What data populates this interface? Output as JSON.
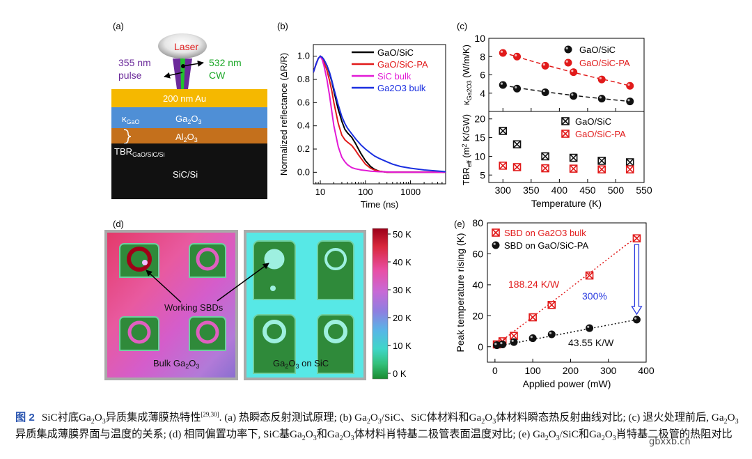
{
  "panel_labels": {
    "a": "(a)",
    "b": "(b)",
    "c": "(c)",
    "d": "(d)",
    "e": "(e)"
  },
  "panel_a": {
    "laser": "Laser",
    "pulse_line1": "355 nm",
    "pulse_line2": "pulse",
    "cw_line1": "532 nm",
    "cw_line2": "CW",
    "layer_au": "200 nm Au",
    "kappa_label": "κGaO",
    "layer_ga2o3": "Ga2O3",
    "layer_al2o3": "Al2O3",
    "tbr_label": "TBRGaO/SiC/Si",
    "layer_sic": "SiC/Si",
    "colors": {
      "au": "#f5b800",
      "ga2o3": "#4f8fd6",
      "al2o3": "#c4701c",
      "sic": "#111111",
      "beam_purple": "#6b2a9a",
      "beam_green": "#22c12e",
      "laser_text": "#e02020"
    }
  },
  "panel_d": {
    "working_label": "Working SBDs",
    "bulk_label": "Bulk Ga2O3",
    "sic_label": "Ga2O3 on SiC",
    "colorbar_ticks": [
      "50 K",
      "40 K",
      "30 K",
      "20 K",
      "10 K",
      "0 K"
    ]
  },
  "caption": {
    "figure_label": "图 2",
    "text_lead": "SiC衬底Ga2O3异质集成薄膜热特性",
    "refs": "[29,30]",
    "text_body": ". (a) 热瞬态反射测试原理; (b) Ga2O3/SiC、SiC体材料和Ga2O3体材料瞬态热反射曲线对比; (c) 退火处理前后, Ga2O3异质集成薄膜界面与温度的关系; (d) 相同偏置功率下, SiC基Ga2O3和Ga2O3体材料肖特基二极管表面温度对比; (e) Ga2O3/SiC和Ga2O3肖特基二极管的热阻对比"
  },
  "watermark": "gbxxb.cn",
  "chart_data": [
    {
      "id": "b",
      "type": "line",
      "xscale": "log",
      "xlabel": "Time (ns)",
      "ylabel": "Normalized reflectance (ΔR/R)",
      "xlim": [
        7,
        6000
      ],
      "ylim": [
        -0.1,
        1.1
      ],
      "xticks": [
        10,
        100,
        1000
      ],
      "yticks": [
        0.0,
        0.2,
        0.4,
        0.6,
        0.8,
        1.0
      ],
      "series": [
        {
          "name": "GaO/SiC",
          "color": "#000000",
          "x": [
            7,
            8,
            9,
            10,
            11,
            12,
            14,
            16,
            18,
            20,
            25,
            30,
            35,
            40,
            50,
            60,
            70,
            80,
            100,
            130,
            160,
            200,
            300,
            500,
            1000,
            6000
          ],
          "y": [
            0.86,
            0.93,
            0.98,
            1.0,
            0.99,
            0.97,
            0.92,
            0.85,
            0.78,
            0.7,
            0.54,
            0.44,
            0.37,
            0.34,
            0.3,
            0.25,
            0.2,
            0.16,
            0.1,
            0.05,
            0.025,
            0.01,
            0.0,
            0.0,
            0.0,
            0.0
          ]
        },
        {
          "name": "GaO/SiC-PA",
          "color": "#e11a1a",
          "x": [
            7,
            8,
            9,
            10,
            11,
            12,
            14,
            16,
            18,
            20,
            25,
            30,
            35,
            40,
            50,
            60,
            70,
            80,
            100,
            130,
            160,
            200,
            300,
            500,
            1000,
            6000
          ],
          "y": [
            0.86,
            0.93,
            0.98,
            1.0,
            0.98,
            0.95,
            0.88,
            0.79,
            0.7,
            0.6,
            0.42,
            0.32,
            0.28,
            0.26,
            0.23,
            0.19,
            0.15,
            0.12,
            0.07,
            0.035,
            0.02,
            0.01,
            0.0,
            0.0,
            0.0,
            0.0
          ]
        },
        {
          "name": "SiC bulk",
          "color": "#e21ad6",
          "x": [
            7,
            8,
            9,
            10,
            11,
            12,
            14,
            16,
            18,
            20,
            25,
            30,
            35,
            40,
            50,
            60,
            70,
            80,
            100,
            130,
            200,
            500,
            1000,
            6000
          ],
          "y": [
            0.86,
            0.93,
            0.98,
            1.0,
            0.97,
            0.92,
            0.8,
            0.66,
            0.52,
            0.4,
            0.22,
            0.13,
            0.09,
            0.065,
            0.04,
            0.03,
            0.025,
            0.02,
            0.015,
            0.01,
            0.005,
            0.0,
            0.0,
            0.0
          ]
        },
        {
          "name": "Ga2O3 bulk",
          "color": "#1a2fe0",
          "x": [
            7,
            8,
            9,
            10,
            11,
            12,
            14,
            16,
            18,
            20,
            25,
            30,
            35,
            40,
            50,
            60,
            70,
            80,
            100,
            130,
            160,
            200,
            300,
            400,
            600,
            1000,
            2000,
            6000
          ],
          "y": [
            0.86,
            0.93,
            0.98,
            1.0,
            0.99,
            0.97,
            0.92,
            0.86,
            0.79,
            0.72,
            0.58,
            0.48,
            0.42,
            0.38,
            0.33,
            0.29,
            0.26,
            0.235,
            0.2,
            0.165,
            0.14,
            0.12,
            0.09,
            0.07,
            0.05,
            0.035,
            0.02,
            0.005
          ]
        }
      ]
    },
    {
      "id": "c-top",
      "type": "scatter",
      "xlabel": "",
      "ylabel": "κGa2O3 (W/m/K)",
      "xlim": [
        275,
        550
      ],
      "ylim": [
        2,
        10
      ],
      "xticks": [
        300,
        350,
        400,
        450,
        500,
        550
      ],
      "yticks": [
        4,
        6,
        8,
        10
      ],
      "series": [
        {
          "name": "GaO/SiC",
          "color": "#111111",
          "x": [
            300,
            325,
            375,
            425,
            475,
            525
          ],
          "y": [
            4.9,
            4.5,
            4.1,
            3.7,
            3.4,
            3.1
          ],
          "fit": {
            "x": [
              300,
              340,
              380,
              420,
              460,
              500,
              525
            ],
            "y": [
              4.85,
              4.45,
              4.1,
              3.78,
              3.5,
              3.25,
              3.1
            ]
          }
        },
        {
          "name": "GaO/SiC-PA",
          "color": "#e11a1a",
          "x": [
            300,
            325,
            375,
            425,
            475,
            525
          ],
          "y": [
            8.4,
            8.0,
            7.0,
            6.3,
            5.5,
            4.8
          ],
          "fit": {
            "x": [
              300,
              340,
              380,
              420,
              460,
              500,
              525
            ],
            "y": [
              8.45,
              7.7,
              7.0,
              6.35,
              5.75,
              5.2,
              4.8
            ]
          }
        }
      ]
    },
    {
      "id": "c-bottom",
      "type": "scatter",
      "xlabel": "Temperature (K)",
      "ylabel": "TBReff (m2 K/GW)",
      "xlim": [
        275,
        550
      ],
      "ylim": [
        3,
        22
      ],
      "xticks": [
        300,
        350,
        400,
        450,
        500,
        550
      ],
      "yticks": [
        5,
        10,
        15,
        20
      ],
      "series": [
        {
          "name": "GaO/SiC",
          "color": "#111111",
          "x": [
            300,
            325,
            375,
            425,
            475,
            525
          ],
          "y": [
            16.8,
            13.2,
            10.0,
            9.6,
            8.8,
            8.4
          ]
        },
        {
          "name": "GaO/SiC-PA",
          "color": "#e11a1a",
          "x": [
            300,
            325,
            375,
            425,
            475,
            525
          ],
          "y": [
            7.5,
            7.1,
            6.8,
            6.7,
            6.5,
            6.5
          ]
        }
      ]
    },
    {
      "id": "e",
      "type": "scatter",
      "xlabel": "Applied power (mW)",
      "ylabel": "Peak temperature rising (K)",
      "xlim": [
        -20,
        400
      ],
      "ylim": [
        -10,
        80
      ],
      "xticks": [
        0,
        100,
        200,
        300,
        400
      ],
      "yticks": [
        0,
        20,
        40,
        60,
        80
      ],
      "annotations": {
        "red_slope": "188.24 K/W",
        "black_slope": "43.55 K/W",
        "ratio": "300%"
      },
      "series": [
        {
          "name": "SBD on Ga2O3 bulk",
          "color": "#e11a1a",
          "x": [
            5,
            20,
            50,
            100,
            150,
            250,
            375
          ],
          "y": [
            1.5,
            3.5,
            7.0,
            19.0,
            27.0,
            46.0,
            70.0
          ],
          "fit": {
            "x": [
              0,
              375
            ],
            "y": [
              0.5,
              71
            ]
          }
        },
        {
          "name": "SBD on GaO/SiC-PA",
          "color": "#111111",
          "x": [
            5,
            20,
            50,
            100,
            150,
            250,
            375
          ],
          "y": [
            1.0,
            1.5,
            3.0,
            5.5,
            8.0,
            12.0,
            17.5
          ],
          "fit": {
            "x": [
              0,
              375
            ],
            "y": [
              0.0,
              17.5
            ]
          }
        }
      ]
    }
  ]
}
